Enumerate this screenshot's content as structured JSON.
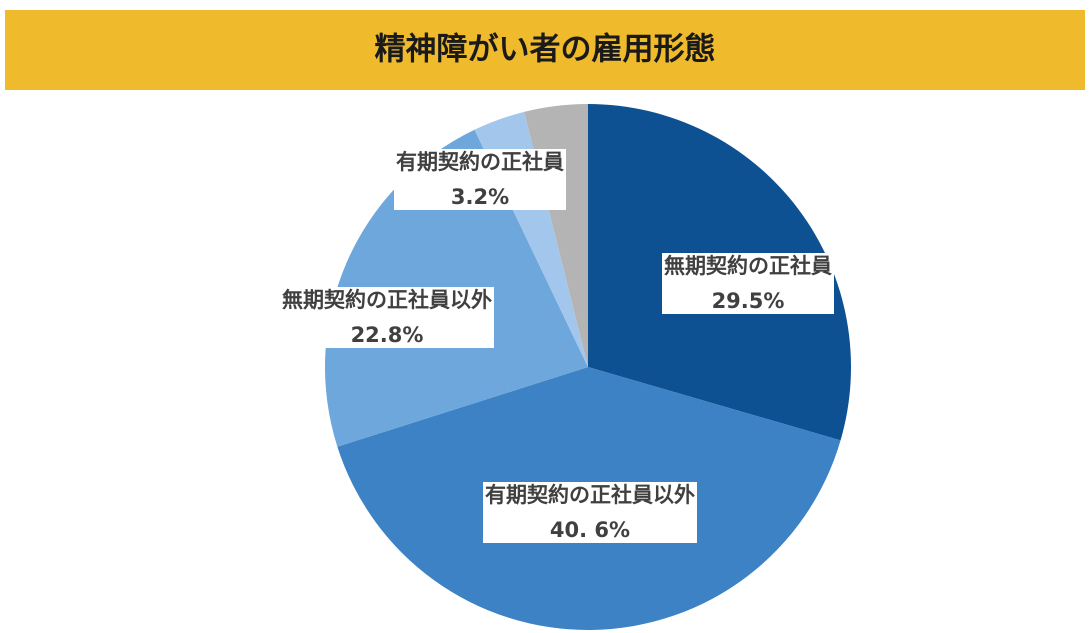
{
  "chart_data": {
    "type": "pie",
    "title": "精神障がい者の雇用形態",
    "categories": [
      "無期契約の正社員",
      "有期契約の正社員以外",
      "無期契約の正社員以外",
      "有期契約の正社員",
      null
    ],
    "values": [
      29.5,
      40.6,
      22.8,
      3.2,
      3.9
    ],
    "value_labels": [
      "29.5%",
      "40. 6%",
      "22.8%",
      "3.2%",
      null
    ],
    "colors": [
      "#0d5192",
      "#3c82c5",
      "#6ea7dc",
      "#a3c7ec",
      "#b4b4b4"
    ]
  }
}
